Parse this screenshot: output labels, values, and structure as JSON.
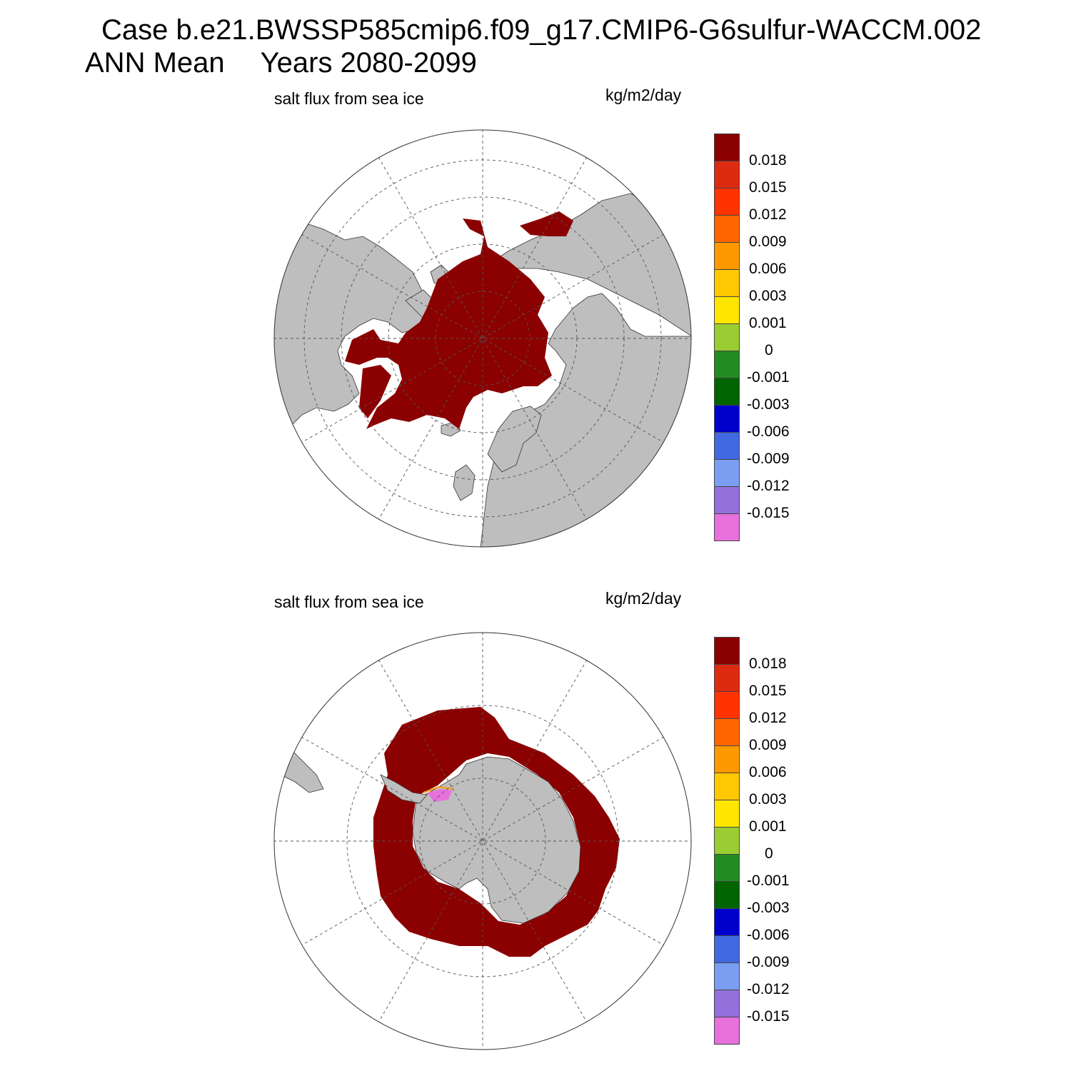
{
  "header": {
    "case_title": "Case b.e21.BWSSP585cmip6.f09_g17.CMIP6-G6sulfur-WACCM.002",
    "season": "ANN Mean",
    "years": "Years 2080-2099"
  },
  "panels": [
    {
      "hemisphere": "north",
      "variable_label": "salt flux from sea ice",
      "units": "kg/m2/day"
    },
    {
      "hemisphere": "south",
      "variable_label": "salt flux from sea ice",
      "units": "kg/m2/day"
    }
  ],
  "colorbar": {
    "colors": [
      "#E770DD",
      "#9370DB",
      "#7B9EF2",
      "#4169E1",
      "#0000CD",
      "#006400",
      "#228B22",
      "#9ACD32",
      "#FFE600",
      "#FFC800",
      "#FF9900",
      "#FF6600",
      "#FF3300",
      "#DD2B12",
      "#8B0000"
    ],
    "tick_labels": [
      "-0.015",
      "-0.012",
      "-0.009",
      "-0.006",
      "-0.003",
      "-0.001",
      "0",
      "0.001",
      "0.003",
      "0.006",
      "0.009",
      "0.012",
      "0.015",
      "0.018"
    ]
  },
  "map_style": {
    "land": "#BEBEBE",
    "ocean": "#FFFFFF",
    "sea_ice_flux": "#8B0000",
    "grid": "#555555"
  }
}
